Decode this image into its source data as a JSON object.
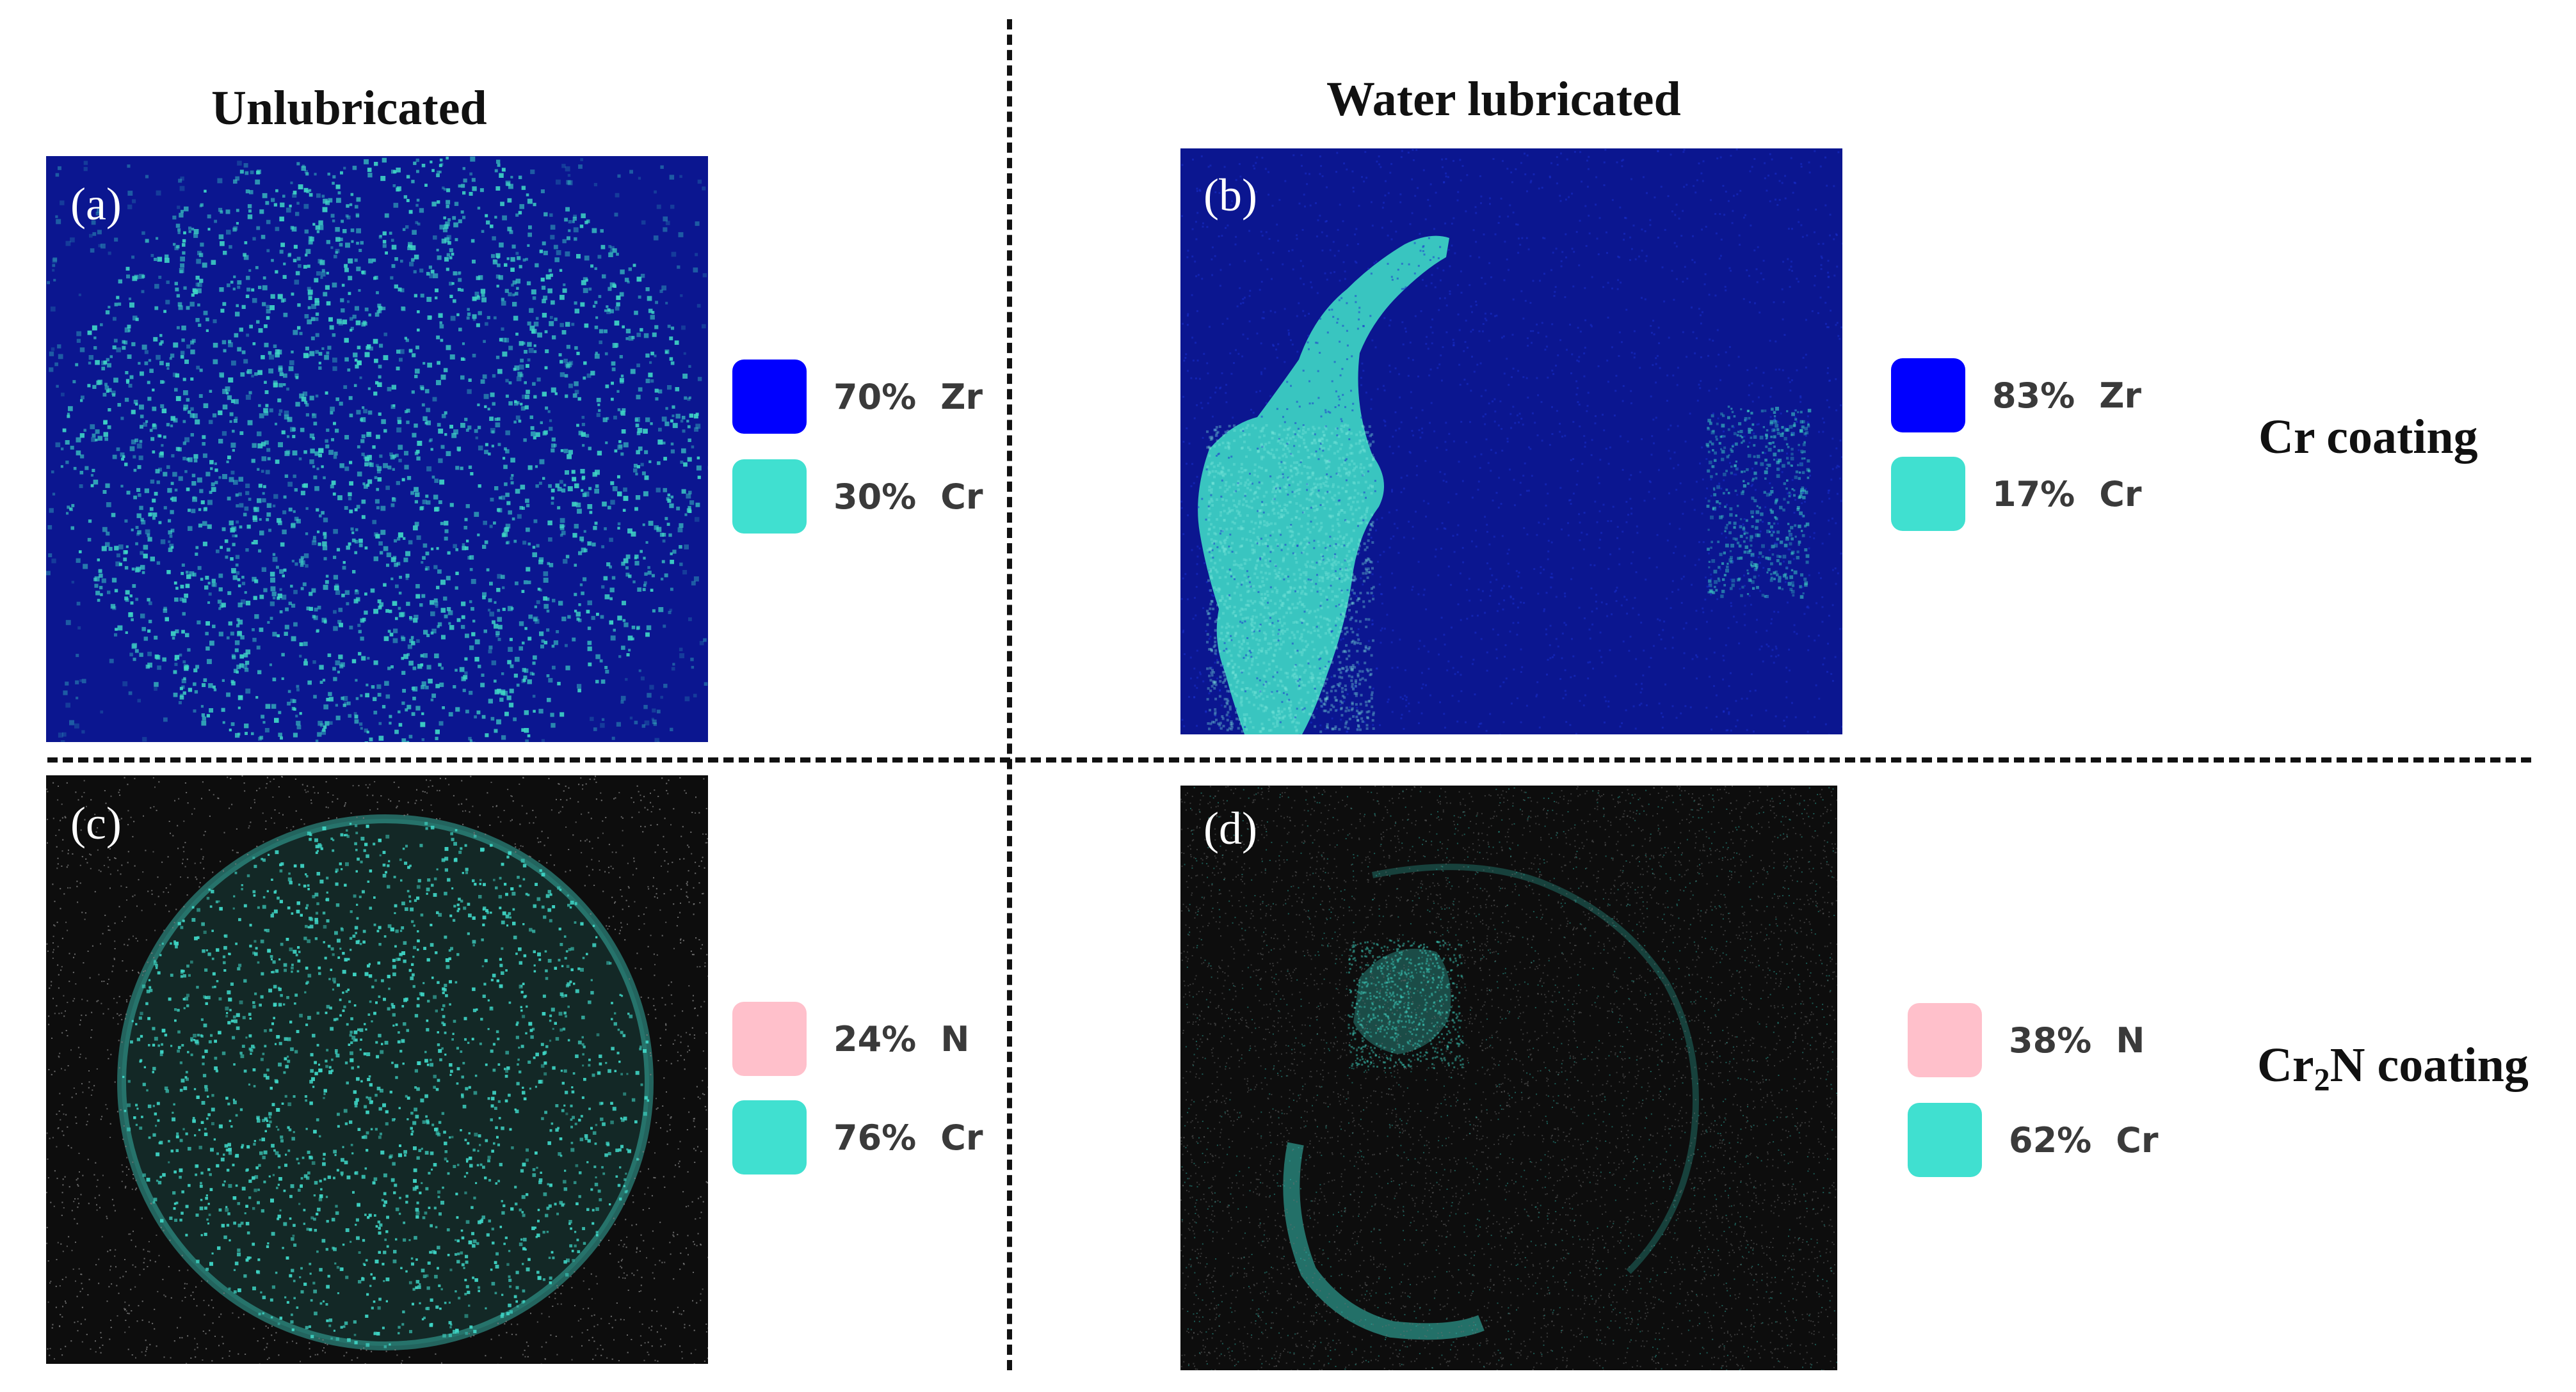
{
  "columns": {
    "left": "Unlubricated",
    "right": "Water lubricated"
  },
  "rows": {
    "top": "Cr coating",
    "bottom": {
      "prefix": "Cr",
      "subscript": "2",
      "suffix": "N coating"
    }
  },
  "panels": [
    {
      "letter": "(a)",
      "legend": [
        {
          "pct": "70%",
          "element": "Zr",
          "color": "#0000ff"
        },
        {
          "pct": "30%",
          "element": "Cr",
          "color": "#40e0d0"
        }
      ]
    },
    {
      "letter": "(b)",
      "legend": [
        {
          "pct": "83%",
          "element": "Zr",
          "color": "#0000ff"
        },
        {
          "pct": "17%",
          "element": "Cr",
          "color": "#40e0d0"
        }
      ]
    },
    {
      "letter": "(c)",
      "legend": [
        {
          "pct": "24%",
          "element": "N",
          "color": "#ffc0cb"
        },
        {
          "pct": "76%",
          "element": "Cr",
          "color": "#40e0d0"
        }
      ]
    },
    {
      "letter": "(d)",
      "legend": [
        {
          "pct": "38%",
          "element": "N",
          "color": "#ffc0cb"
        },
        {
          "pct": "62%",
          "element": "Cr",
          "color": "#40e0d0"
        }
      ]
    }
  ],
  "colors": {
    "zr_background": "#0b1690",
    "dark_background": "#0d0d0d",
    "cr_teal": "#40e0d0",
    "n_pink": "#ffc0cb"
  }
}
